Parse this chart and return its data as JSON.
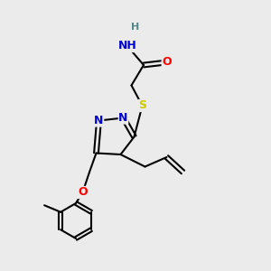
{
  "bg_color": "#ebebeb",
  "atom_colors": {
    "N": "#0000cc",
    "O": "#ff0000",
    "S": "#cccc00",
    "H": "#558888",
    "C": "#000000"
  },
  "bond_color": "#000000",
  "lw": 1.5,
  "fs": 9
}
